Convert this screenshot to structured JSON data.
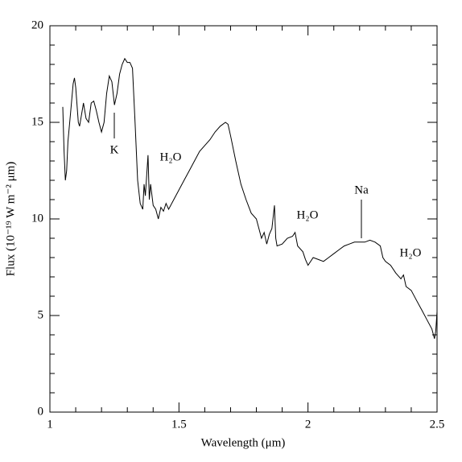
{
  "chart_data": {
    "type": "line",
    "x_label": "Wavelength (μm)",
    "y_label": "Flux (10⁻¹⁹ W m⁻² μm)",
    "annotations": [
      "K",
      "H₂O",
      "H₂O",
      "Na",
      "H₂O"
    ],
    "color": "#000000",
    "xlim": [
      1,
      2.5
    ],
    "ylim": [
      0,
      20
    ],
    "xticks": [
      1,
      {
        "value": 1.5,
        "label": "1.5"
      },
      2,
      {
        "value": 2.5,
        "label": "2.5"
      }
    ],
    "yticks": [
      0,
      5,
      10,
      15,
      20
    ],
    "xminor_ticks": [
      1.1,
      1.2,
      1.3,
      1.4,
      1.6,
      1.7,
      1.8,
      1.9,
      2.1,
      2.2,
      2.3,
      2.4
    ],
    "yminor_ticks": [
      1,
      2,
      3,
      4,
      6,
      7,
      8,
      9,
      11,
      12,
      13,
      14,
      16,
      17,
      18,
      19
    ],
    "x": [
      1.05,
      1.055,
      1.06,
      1.065,
      1.07,
      1.08,
      1.09,
      1.095,
      1.1,
      1.11,
      1.115,
      1.12,
      1.13,
      1.14,
      1.15,
      1.16,
      1.17,
      1.18,
      1.19,
      1.2,
      1.21,
      1.22,
      1.23,
      1.24,
      1.25,
      1.26,
      1.27,
      1.28,
      1.29,
      1.3,
      1.31,
      1.32,
      1.33,
      1.34,
      1.35,
      1.36,
      1.365,
      1.37,
      1.38,
      1.385,
      1.39,
      1.4,
      1.41,
      1.42,
      1.43,
      1.44,
      1.45,
      1.46,
      1.48,
      1.5,
      1.52,
      1.54,
      1.56,
      1.58,
      1.6,
      1.62,
      1.64,
      1.66,
      1.68,
      1.69,
      1.7,
      1.72,
      1.74,
      1.76,
      1.78,
      1.8,
      1.81,
      1.82,
      1.83,
      1.84,
      1.85,
      1.86,
      1.87,
      1.875,
      1.88,
      1.9,
      1.92,
      1.94,
      1.95,
      1.96,
      1.98,
      1.99,
      2.0,
      2.02,
      2.04,
      2.06,
      2.08,
      2.1,
      2.12,
      2.14,
      2.16,
      2.18,
      2.2,
      2.22,
      2.24,
      2.26,
      2.28,
      2.29,
      2.3,
      2.32,
      2.34,
      2.36,
      2.37,
      2.38,
      2.4,
      2.42,
      2.44,
      2.46,
      2.48,
      2.49,
      2.495,
      2.5
    ],
    "values": [
      15.8,
      13.5,
      12.0,
      12.5,
      14,
      15.5,
      17.0,
      17.3,
      16.8,
      15.0,
      14.8,
      15.2,
      16.0,
      15.2,
      15.0,
      16.0,
      16.1,
      15.6,
      15.0,
      14.5,
      15.0,
      16.5,
      17.4,
      17.1,
      15.9,
      16.5,
      17.5,
      18.0,
      18.3,
      18.1,
      18.1,
      17.8,
      15.0,
      12.0,
      10.8,
      10.5,
      11.8,
      11.2,
      13.3,
      11.0,
      11.8,
      10.7,
      10.5,
      10.0,
      10.6,
      10.4,
      10.8,
      10.5,
      11.0,
      11.5,
      12.0,
      12.5,
      13.0,
      13.5,
      13.8,
      14.1,
      14.5,
      14.8,
      15.0,
      14.9,
      14.3,
      13.0,
      11.8,
      11.0,
      10.3,
      10.0,
      9.5,
      9.0,
      9.3,
      8.7,
      9.2,
      9.5,
      10.7,
      9.0,
      8.6,
      8.7,
      9.0,
      9.1,
      9.3,
      8.6,
      8.3,
      7.9,
      7.6,
      8.0,
      7.9,
      7.8,
      8.0,
      8.2,
      8.4,
      8.6,
      8.7,
      8.8,
      8.8,
      8.8,
      8.9,
      8.8,
      8.6,
      8.0,
      7.8,
      7.6,
      7.2,
      6.9,
      7.1,
      6.5,
      6.3,
      5.8,
      5.3,
      4.8,
      4.3,
      3.8,
      4.2,
      5.2
    ]
  }
}
